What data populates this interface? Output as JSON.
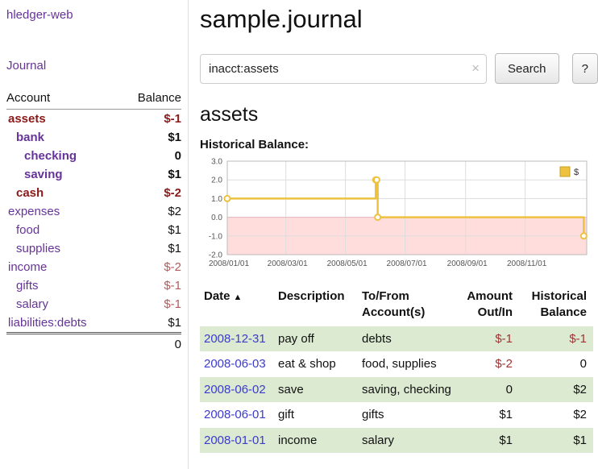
{
  "colors": {
    "link_purple": "#663399",
    "date_blue": "#3b3bcc",
    "negative_strong": "#8b1a1a",
    "negative_soft": "#b05d5d",
    "register_negative": "#a03333",
    "row_green": "#dcead2",
    "chart_line": "#edc240",
    "chart_line_dark": "#c8a020",
    "chart_negative_fill": "#ffdddd",
    "chart_grid": "#dddddd",
    "chart_border": "#bbbbbb"
  },
  "sidebar": {
    "brand": "hledger-web",
    "journal_label": "Journal",
    "accounts_header": {
      "account": "Account",
      "balance": "Balance"
    },
    "accounts": [
      {
        "name": "assets",
        "indent": 1,
        "bold": true,
        "name_color": "negative_strong",
        "balance": "$-1",
        "balance_color": "negative_strong"
      },
      {
        "name": "bank",
        "indent": 2,
        "bold": true,
        "balance": "$1"
      },
      {
        "name": "checking",
        "indent": 3,
        "bold": true,
        "balance": "0"
      },
      {
        "name": "saving",
        "indent": 3,
        "bold": true,
        "balance": "$1"
      },
      {
        "name": "cash",
        "indent": 2,
        "bold": true,
        "name_color": "negative_strong",
        "balance": "$-2",
        "balance_color": "negative_strong"
      },
      {
        "name": "expenses",
        "indent": 1,
        "bold": false,
        "balance": "$2"
      },
      {
        "name": "food",
        "indent": 2,
        "bold": false,
        "balance": "$1"
      },
      {
        "name": "supplies",
        "indent": 2,
        "bold": false,
        "balance": "$1"
      },
      {
        "name": "income",
        "indent": 1,
        "bold": false,
        "balance": "$-2",
        "balance_color": "negative_soft"
      },
      {
        "name": "gifts",
        "indent": 2,
        "bold": false,
        "balance": "$-1",
        "balance_color": "negative_soft"
      },
      {
        "name": "salary",
        "indent": 2,
        "bold": false,
        "balance": "$-1",
        "balance_color": "negative_soft"
      },
      {
        "name": "liabilities:debts",
        "indent": 1,
        "bold": false,
        "balance": "$1"
      }
    ],
    "total": "0"
  },
  "main": {
    "title": "sample.journal",
    "search": {
      "query": "inacct:assets",
      "clear_icon": "×",
      "button_label": "Search",
      "help_label": "?"
    },
    "account_heading": "assets",
    "chart_label": "Historical Balance:"
  },
  "chart_data": {
    "type": "line",
    "style": "step",
    "title": "Historical Balance",
    "series": [
      {
        "name": "$",
        "points": [
          {
            "date": "2008-01-01",
            "day": 0,
            "value": 1
          },
          {
            "date": "2008-06-01",
            "day": 152,
            "value": 2
          },
          {
            "date": "2008-06-02",
            "day": 153,
            "value": 2
          },
          {
            "date": "2008-06-03",
            "day": 154,
            "value": 0
          },
          {
            "date": "2008-12-31",
            "day": 365,
            "value": -1
          }
        ]
      }
    ],
    "x_ticks": [
      {
        "label": "2008/01/01",
        "day": 0
      },
      {
        "label": "2008/03/01",
        "day": 60
      },
      {
        "label": "2008/05/01",
        "day": 121
      },
      {
        "label": "2008/07/01",
        "day": 182
      },
      {
        "label": "2008/09/01",
        "day": 244
      },
      {
        "label": "2008/11/01",
        "day": 305
      }
    ],
    "y_ticks": [
      {
        "label": "3.0",
        "value": 3
      },
      {
        "label": "2.0",
        "value": 2
      },
      {
        "label": "1.0",
        "value": 1
      },
      {
        "label": "0.0",
        "value": 0
      },
      {
        "label": "-1.0",
        "value": -1
      },
      {
        "label": "-2.0",
        "value": -2
      }
    ],
    "ylim": [
      -2,
      3
    ],
    "xlim_days": [
      0,
      368
    ],
    "grid": true,
    "legend": {
      "position": "top-right",
      "entries": [
        "$"
      ]
    }
  },
  "register": {
    "headers": [
      "Date",
      "Description",
      "To/From Account(s)",
      "Amount Out/In",
      "Historical Balance"
    ],
    "sort_icon": "▲",
    "rows": [
      {
        "date": "2008-12-31",
        "description": "pay off",
        "accounts": "debts",
        "amount": "$-1",
        "amount_negative": true,
        "balance": "$-1",
        "balance_negative": true,
        "shaded": true
      },
      {
        "date": "2008-06-03",
        "description": "eat & shop",
        "accounts": "food, supplies",
        "amount": "$-2",
        "amount_negative": true,
        "balance": "0",
        "balance_negative": false,
        "shaded": false
      },
      {
        "date": "2008-06-02",
        "description": "save",
        "accounts": "saving, checking",
        "amount": "0",
        "amount_negative": false,
        "balance": "$2",
        "balance_negative": false,
        "shaded": true
      },
      {
        "date": "2008-06-01",
        "description": "gift",
        "accounts": "gifts",
        "amount": "$1",
        "amount_negative": false,
        "balance": "$2",
        "balance_negative": false,
        "shaded": false
      },
      {
        "date": "2008-01-01",
        "description": "income",
        "accounts": "salary",
        "amount": "$1",
        "amount_negative": false,
        "balance": "$1",
        "balance_negative": false,
        "shaded": true
      }
    ]
  }
}
